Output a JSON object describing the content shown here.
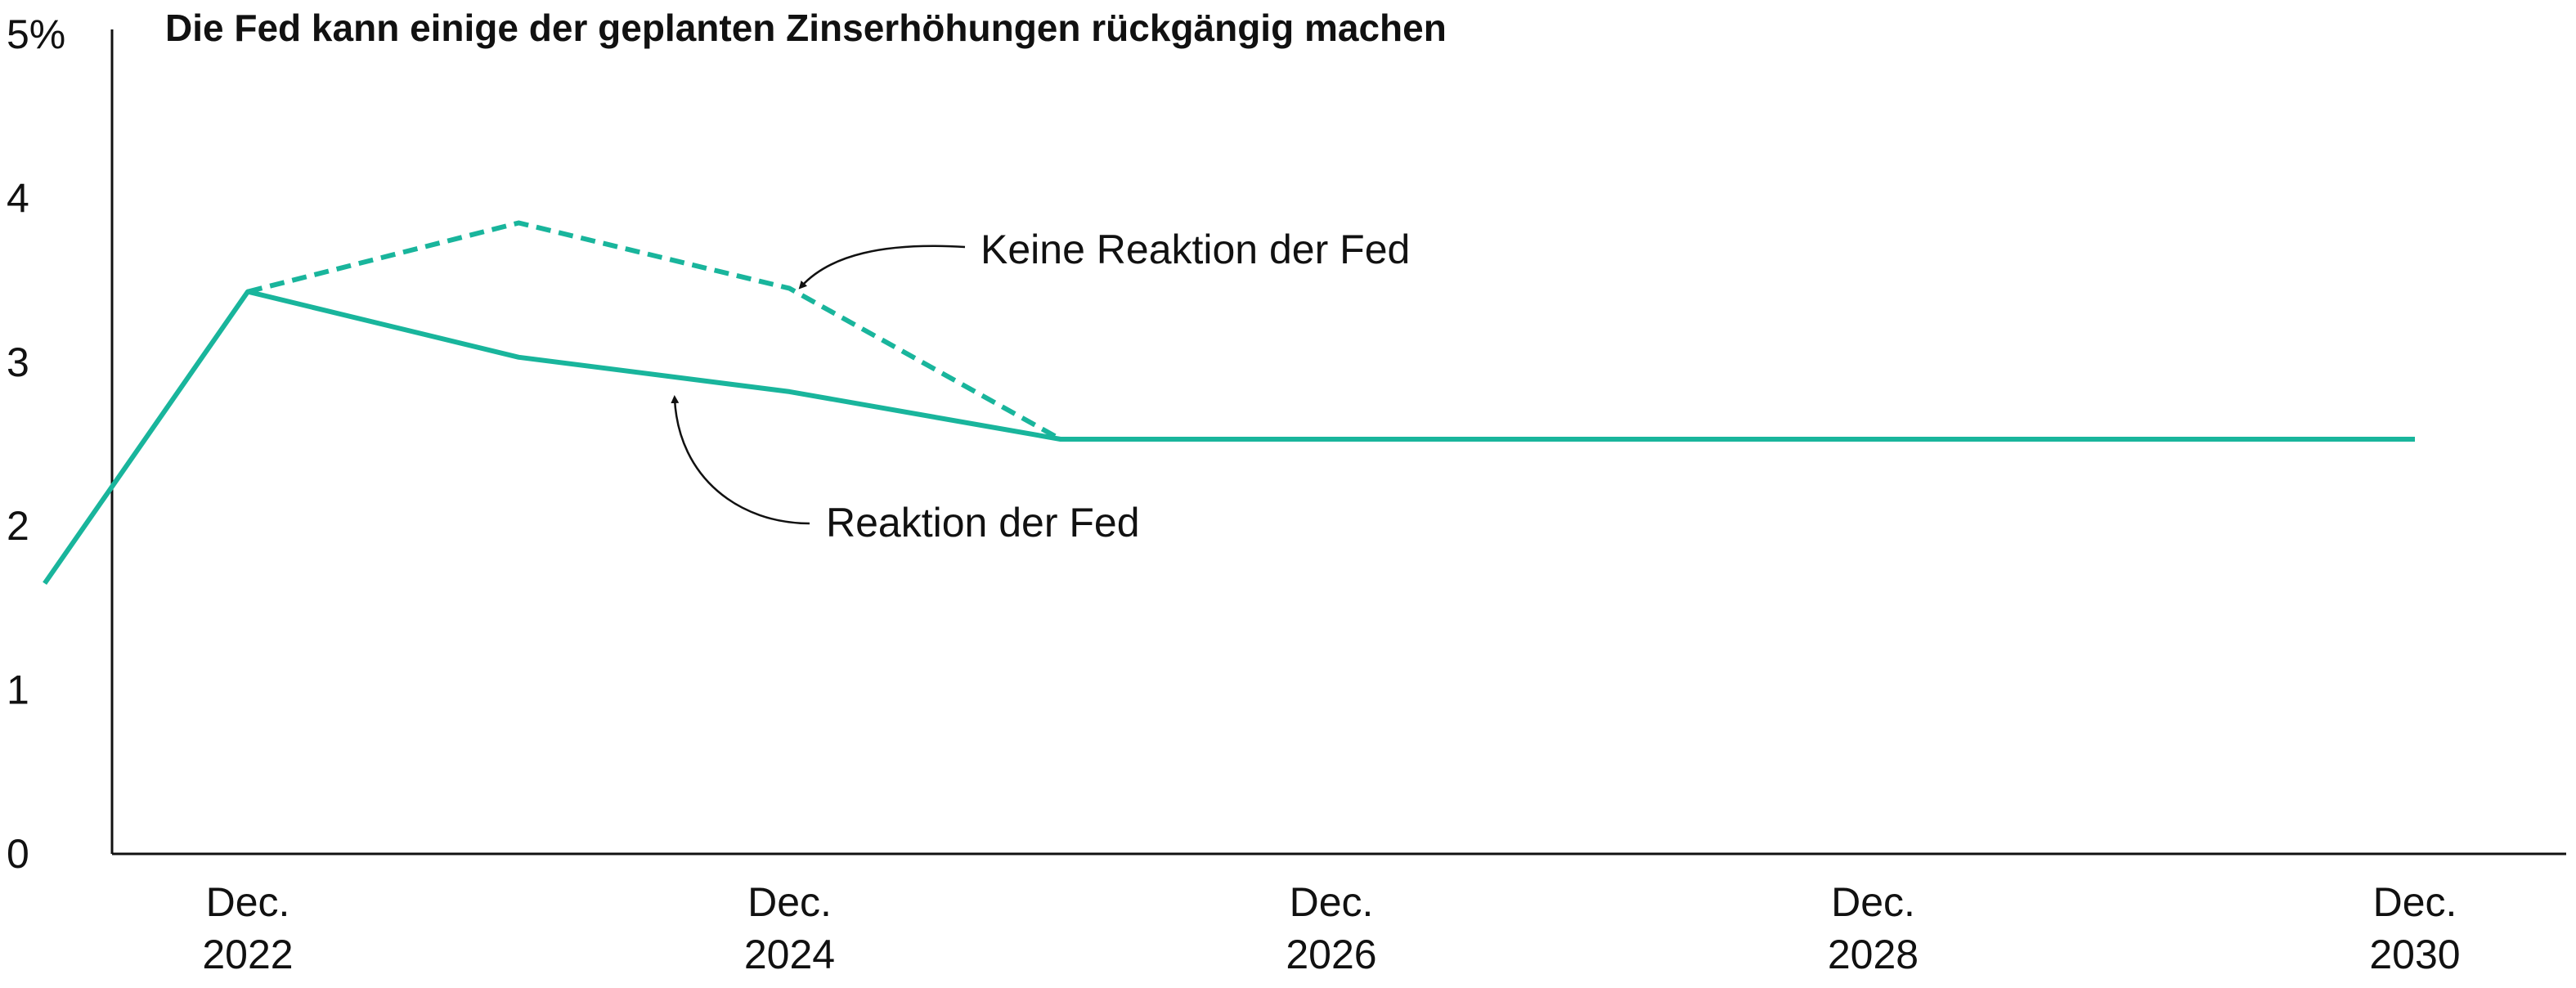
{
  "chart_data": {
    "type": "line",
    "title": "Die Fed kann einige der geplanten Zinserhöhungen rückgängig machen",
    "xlabel": "",
    "ylabel": "",
    "ylim": [
      0,
      5
    ],
    "y_ticks": [
      "0",
      "1",
      "2",
      "3",
      "4",
      "5%"
    ],
    "x_ticks": [
      {
        "line1": "Dec.",
        "line2": "2022"
      },
      {
        "line1": "Dec.",
        "line2": "2024"
      },
      {
        "line1": "Dec.",
        "line2": "2026"
      },
      {
        "line1": "Dec.",
        "line2": "2028"
      },
      {
        "line1": "Dec.",
        "line2": "2030"
      }
    ],
    "color": "#19b59c",
    "series": [
      {
        "name": "Reaktion der Fed",
        "style": "solid",
        "x": [
          "2022-03",
          "2022-12",
          "2023-12",
          "2024-12",
          "2025-12",
          "2030-12"
        ],
        "values": [
          1.65,
          3.43,
          3.03,
          2.82,
          2.53,
          2.53
        ]
      },
      {
        "name": "Keine Reaktion der Fed",
        "style": "dashed",
        "x": [
          "2022-12",
          "2023-12",
          "2024-12",
          "2025-12"
        ],
        "values": [
          3.43,
          3.85,
          3.45,
          2.53
        ]
      }
    ],
    "annotations": [
      {
        "text": "Keine Reaktion der Fed",
        "series": "Keine Reaktion der Fed"
      },
      {
        "text": "Reaktion der Fed",
        "series": "Reaktion der Fed"
      }
    ]
  }
}
